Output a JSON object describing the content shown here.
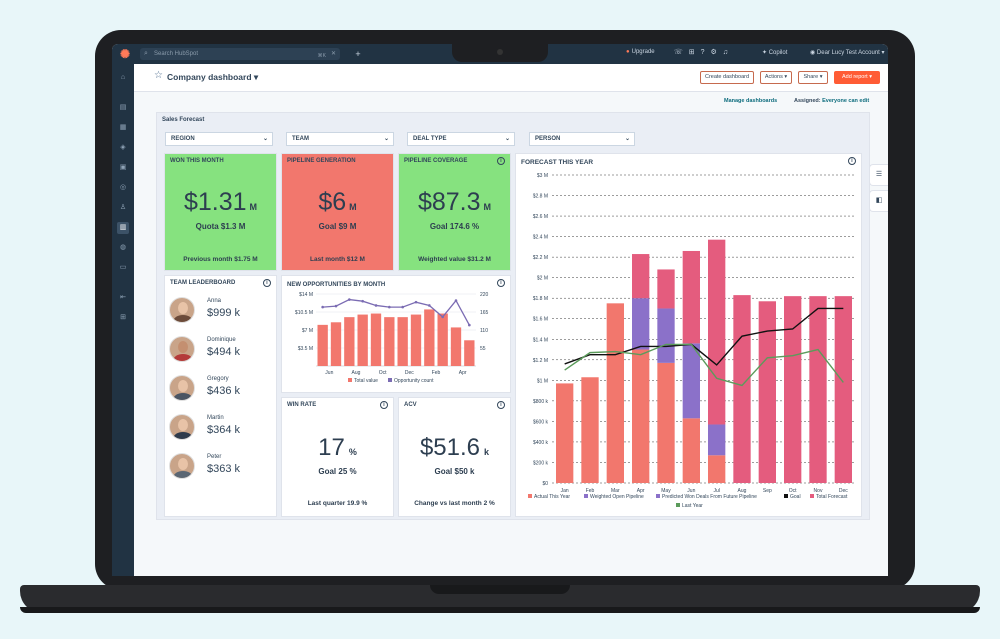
{
  "topbar": {
    "search_placeholder": "Search HubSpot",
    "search_shortcut": "⌘K",
    "upgrade_label": "Upgrade",
    "copilot_label": "Copilot",
    "account_label": "Dear Lucy Test Account"
  },
  "header": {
    "title": "Company dashboard",
    "create_label": "Create dashboard",
    "actions_label": "Actions",
    "share_label": "Share",
    "add_report_label": "Add report",
    "manage_label": "Manage dashboards",
    "assigned_prefix": "Assigned:",
    "assigned_value": "Everyone can edit"
  },
  "section_title": "Sales Forecast",
  "filters": [
    "REGION",
    "TEAM",
    "DEAL TYPE",
    "PERSON"
  ],
  "kpis": {
    "won": {
      "title": "WON THIS MONTH",
      "value": "$1.31",
      "unit": "M",
      "sub": "Quota $1.3 M",
      "foot": "Previous month $1.75 M",
      "color": "#86e27f"
    },
    "pipeline": {
      "title": "PIPELINE GENERATION",
      "value": "$6",
      "unit": "M",
      "sub": "Goal $9 M",
      "foot": "Last month $12 M",
      "color": "#f2776d"
    },
    "coverage": {
      "title": "PIPELINE COVERAGE",
      "value": "$87.3",
      "unit": "M",
      "sub": "Goal 174.6 %",
      "foot": "Weighted value $31.2 M",
      "color": "#86e27f"
    }
  },
  "leaderboard": {
    "title": "TEAM LEADERBOARD",
    "reps": [
      {
        "name": "Anna",
        "value": "$999 k"
      },
      {
        "name": "Dominique",
        "value": "$494 k"
      },
      {
        "name": "Gregory",
        "value": "$436 k"
      },
      {
        "name": "Martin",
        "value": "$364 k"
      },
      {
        "name": "Peter",
        "value": "$363 k"
      }
    ]
  },
  "win_rate": {
    "title": "WIN RATE",
    "value": "17",
    "unit": "%",
    "sub": "Goal 25 %",
    "foot": "Last quarter 19.9 %"
  },
  "acv": {
    "title": "ACV",
    "value": "$51.6",
    "unit": "k",
    "sub": "Goal $50 k",
    "foot": "Change vs last month 2 %"
  },
  "chart_data": [
    {
      "type": "bar",
      "title": "NEW OPPORTUNITIES BY MONTH",
      "categories": [
        "Jun",
        "",
        "Aug",
        "",
        "Oct",
        "",
        "Dec",
        "",
        "Feb",
        "",
        "Apr",
        ""
      ],
      "tick_labels": [
        "Jun",
        "Aug",
        "Oct",
        "Dec",
        "Feb",
        "Apr"
      ],
      "series": [
        {
          "name": "Total value",
          "type": "bar",
          "values": [
            8.0,
            8.5,
            9.5,
            10.0,
            10.2,
            9.5,
            9.5,
            10.0,
            11.0,
            10.2,
            7.5,
            5.0
          ],
          "color": "#f2776d"
        },
        {
          "name": "Opportunity count",
          "type": "line",
          "values": [
            180,
            183,
            203,
            198,
            185,
            180,
            180,
            195,
            185,
            150,
            200,
            125
          ],
          "color": "#7b6cb3"
        }
      ],
      "y_left_ticks": [
        "$14 M",
        "$10.5 M",
        "$7 M",
        "$3.5 M"
      ],
      "y_right_ticks": [
        "220",
        "165",
        "110",
        "55"
      ],
      "ylim_left": [
        0,
        14
      ],
      "ylim_right": [
        0,
        220
      ]
    },
    {
      "type": "bar",
      "title": "FORECAST THIS YEAR",
      "categories": [
        "Jan",
        "Feb",
        "Mar",
        "Apr",
        "May",
        "Jun",
        "Jul",
        "Aug",
        "Sep",
        "Oct",
        "Nov",
        "Dec"
      ],
      "ylim": [
        0,
        3.0
      ],
      "y_ticks": [
        "$3 M",
        "$2.8 M",
        "$2.6 M",
        "$2.4 M",
        "$2.2 M",
        "$2 M",
        "$1.8 M",
        "$1.6 M",
        "$1.4 M",
        "$1.2 M",
        "$1 M",
        "$800 k",
        "$600 k",
        "$400 k",
        "$200 k",
        "$0"
      ],
      "series": [
        {
          "name": "Actual This Year",
          "stack": [
            0.97,
            1.03,
            1.75,
            1.3,
            1.17,
            0.63,
            0.27,
            0,
            0,
            0,
            0,
            0
          ],
          "color": "#f2776d"
        },
        {
          "name": "Weighted Open Pipeline",
          "stack": [
            0,
            0,
            0,
            0,
            0,
            0,
            0.3,
            0,
            0,
            0,
            0,
            0
          ],
          "color": "#8b71c9"
        },
        {
          "name": "Predicted Won Deals From Future Pipeline",
          "stack": [
            0,
            0,
            0,
            0.5,
            0.53,
            0.73,
            0,
            0,
            0,
            0,
            0,
            0
          ],
          "color": "#8b71c9"
        },
        {
          "name": "Total Forecast",
          "stack": [
            0,
            0,
            0,
            0.43,
            0.38,
            0.9,
            1.8,
            1.83,
            1.77,
            1.82,
            1.82,
            1.82
          ],
          "color": "#e45c7e"
        },
        {
          "name": "Goal",
          "type": "line",
          "values": [
            1.16,
            1.25,
            1.25,
            1.33,
            1.33,
            1.35,
            1.15,
            1.43,
            1.48,
            1.5,
            1.7,
            1.7
          ],
          "color": "#111111"
        },
        {
          "name": "Last Year",
          "type": "line",
          "values": [
            1.1,
            1.27,
            1.28,
            1.25,
            1.35,
            1.35,
            1.02,
            0.95,
            1.22,
            1.24,
            1.3,
            0.98
          ],
          "color": "#5b9b5b"
        }
      ]
    }
  ]
}
